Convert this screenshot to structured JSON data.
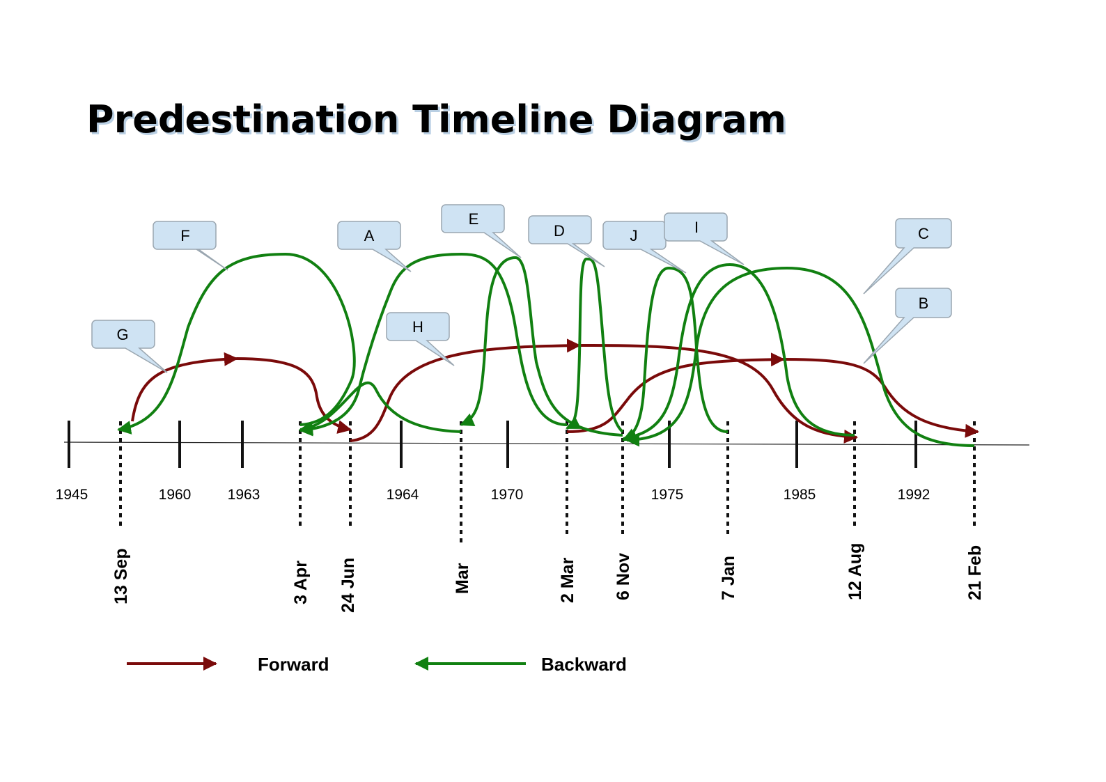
{
  "title": "Predestination Timeline Diagram",
  "colors": {
    "forward": "#7a0a0a",
    "backward": "#118011",
    "callout_fill": "#cfe3f3",
    "callout_stroke": "#9aa6b0"
  },
  "years": [
    "1945",
    "1960",
    "1963",
    "1964",
    "1970",
    "1975",
    "1985",
    "1992"
  ],
  "dates": [
    "13 Sep",
    "3 Apr",
    "24 Jun",
    "Mar",
    "2 Mar",
    "6 Nov",
    "7 Jan",
    "12 Aug",
    "21 Feb"
  ],
  "callouts": [
    "A",
    "B",
    "C",
    "D",
    "E",
    "F",
    "G",
    "H",
    "I",
    "J"
  ],
  "legend": {
    "forward": "Forward",
    "backward": "Backward"
  }
}
